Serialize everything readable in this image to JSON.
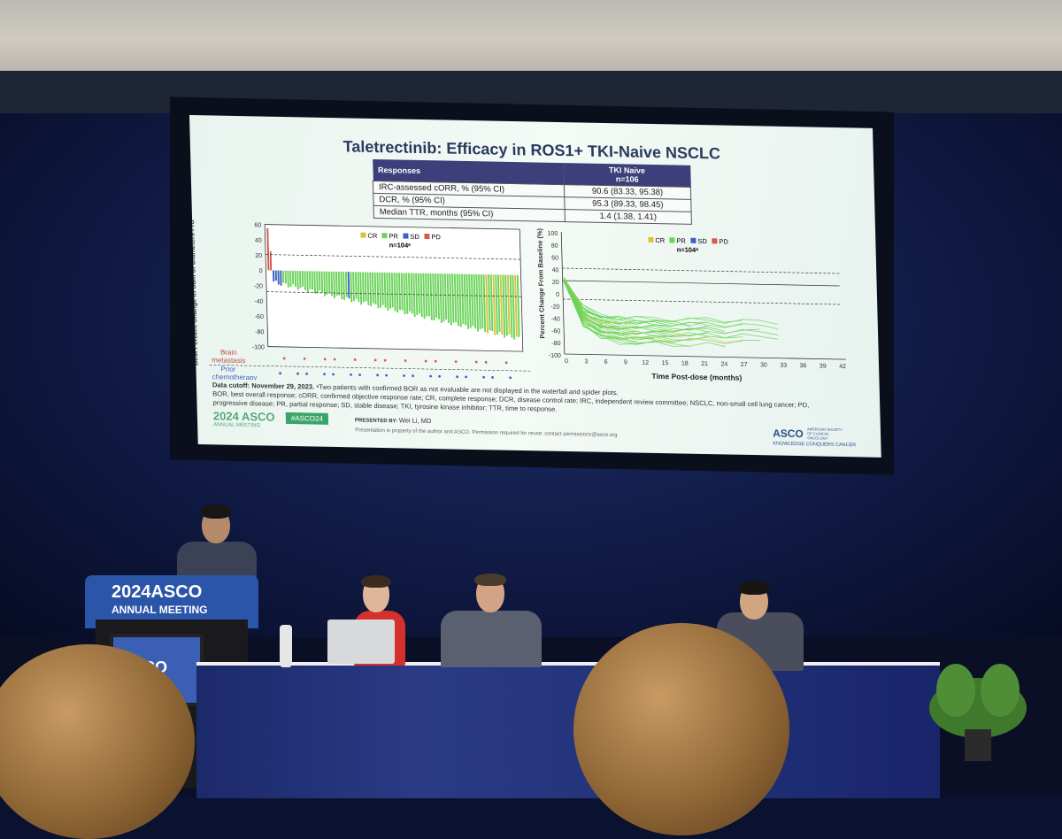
{
  "slide": {
    "title": "Taletrectinib: Efficacy in ROS1+ TKI-Naive NSCLC",
    "table": {
      "header_left": "Responses",
      "header_right_line1": "TKI Naive",
      "header_right_line2": "n=106",
      "rows": [
        {
          "label": "IRC-assessed cORR, % (95% CI)",
          "value": "90.6 (83.33, 95.38)"
        },
        {
          "label": "DCR, % (95% CI)",
          "value": "95.3 (89.33, 98.45)"
        },
        {
          "label": "Median TTR, months (95% CI)",
          "value": "1.4 (1.38, 1.41)"
        }
      ]
    },
    "waterfall": {
      "ylabel": "Best Percent Change in Sum of Diameters From Baseline (%)",
      "legend": [
        "CR",
        "PR",
        "SD",
        "PD"
      ],
      "n_label": "n=104ᵃ",
      "yticks": [
        "60",
        "40",
        "20",
        "0",
        "-20",
        "-40",
        "-60",
        "-80",
        "-100"
      ],
      "row_label_1_line1": "Brain",
      "row_label_1_line2": "metastasis",
      "row_label_2_line1": "Prior",
      "row_label_2_line2": "chemotherapy"
    },
    "spider": {
      "ylabel": "Percent Change From Baseline (%)",
      "xlabel": "Time Post-dose (months)",
      "legend": [
        "CR",
        "PR",
        "SD",
        "PD"
      ],
      "n_label": "n=104ᵃ",
      "yticks": [
        "100",
        "80",
        "60",
        "40",
        "20",
        "0",
        "-20",
        "-40",
        "-60",
        "-80",
        "-100"
      ],
      "xticks": [
        "0",
        "3",
        "6",
        "9",
        "12",
        "15",
        "18",
        "21",
        "24",
        "27",
        "30",
        "33",
        "36",
        "39",
        "42"
      ]
    },
    "footnote_bold": "Data cutoff: November 29, 2023.",
    "footnote_1": "ᵃTwo patients with confirmed BOR as not evaluable are not displayed in the waterfall and spider plots.",
    "footnote_2": "BOR, best overall response; cORR, confirmed objective response rate; CR, complete response; DCR, disease control rate; IRC, independent review committee; NSCLC, non-small cell lung cancer; PD,",
    "footnote_3": "progressive disease; PR, partial response; SD, stable disease; TKI, tyrosine kinase inhibitor; TTR, time to response.",
    "meeting_logo": "2024 ASCO",
    "meeting_sub": "ANNUAL MEETING",
    "hashtag": "#ASCO24",
    "presented_by_label": "PRESENTED BY:",
    "presenter": "Wei Li, MD",
    "disclaimer": "Presentation is property of the author and ASCO. Permission required for reuse; contact permissions@asco.org",
    "asco_brand": "ASCO",
    "asco_brand_sub": "AMERICAN SOCIETY OF CLINICAL ONCOLOGY",
    "asco_tagline": "KNOWLEDGE CONQUERS CANCER"
  },
  "podium": {
    "line1": "2024ASCO",
    "line2": "ANNUAL MEETING",
    "monitor_text": "SCO"
  },
  "colors": {
    "CR": "#d8c43a",
    "PR": "#6bd35a",
    "SD": "#3d5fc4",
    "PD": "#d45a4a",
    "slide_bg": "#eef7f2",
    "table_header": "#3c3f7a",
    "tablecloth": "#22337a"
  }
}
